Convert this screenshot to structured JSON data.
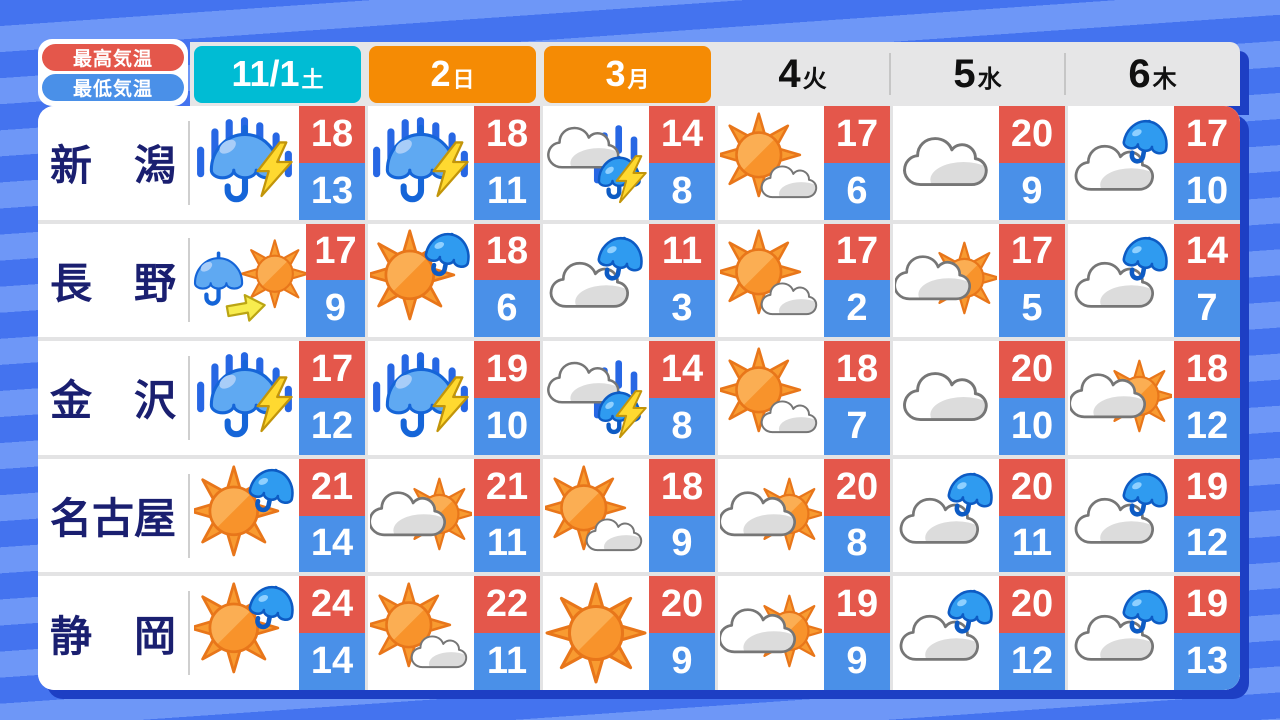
{
  "legend": {
    "high_label": "最高気温",
    "low_label": "最低気温"
  },
  "header": {
    "days": [
      {
        "date": "11/1",
        "weekday": "土",
        "style": "cyan"
      },
      {
        "date": "2",
        "weekday": "日",
        "style": "orange"
      },
      {
        "date": "3",
        "weekday": "月",
        "style": "orange"
      },
      {
        "date": "4",
        "weekday": "火",
        "style": "plain"
      },
      {
        "date": "5",
        "weekday": "水",
        "style": "plain"
      },
      {
        "date": "6",
        "weekday": "木",
        "style": "plain"
      }
    ]
  },
  "cities": [
    {
      "name": "新　潟",
      "cells": [
        {
          "icon": "rain-thunder",
          "high": 18,
          "low": 13
        },
        {
          "icon": "rain-thunder",
          "high": 18,
          "low": 11
        },
        {
          "icon": "cloud-rain-thunder",
          "high": 14,
          "low": 8
        },
        {
          "icon": "sun-cloud",
          "high": 17,
          "low": 6
        },
        {
          "icon": "cloud",
          "high": 20,
          "low": 9
        },
        {
          "icon": "cloud-umbrella",
          "high": 17,
          "low": 10
        }
      ]
    },
    {
      "name": "長　野",
      "cells": [
        {
          "icon": "umbrella-then-sun",
          "high": 17,
          "low": 9
        },
        {
          "icon": "sun-umbrella",
          "high": 18,
          "low": 6
        },
        {
          "icon": "cloud-umbrella",
          "high": 11,
          "low": 3
        },
        {
          "icon": "sun-cloud",
          "high": 17,
          "low": 2
        },
        {
          "icon": "cloud-sun",
          "high": 17,
          "low": 5
        },
        {
          "icon": "cloud-umbrella",
          "high": 14,
          "low": 7
        }
      ]
    },
    {
      "name": "金　沢",
      "cells": [
        {
          "icon": "rain-thunder",
          "high": 17,
          "low": 12
        },
        {
          "icon": "rain-thunder",
          "high": 19,
          "low": 10
        },
        {
          "icon": "cloud-rain-thunder",
          "high": 14,
          "low": 8
        },
        {
          "icon": "sun-cloud",
          "high": 18,
          "low": 7
        },
        {
          "icon": "cloud",
          "high": 20,
          "low": 10
        },
        {
          "icon": "cloud-sun",
          "high": 18,
          "low": 12
        }
      ]
    },
    {
      "name": "名古屋",
      "cells": [
        {
          "icon": "sun-umbrella",
          "high": 21,
          "low": 14
        },
        {
          "icon": "cloud-sun",
          "high": 21,
          "low": 11
        },
        {
          "icon": "sun-cloud",
          "high": 18,
          "low": 9
        },
        {
          "icon": "cloud-sun",
          "high": 20,
          "low": 8
        },
        {
          "icon": "cloud-umbrella",
          "high": 20,
          "low": 11
        },
        {
          "icon": "cloud-umbrella",
          "high": 19,
          "low": 12
        }
      ]
    },
    {
      "name": "静　岡",
      "cells": [
        {
          "icon": "sun-umbrella",
          "high": 24,
          "low": 14
        },
        {
          "icon": "sun-cloud",
          "high": 22,
          "low": 11
        },
        {
          "icon": "sun",
          "high": 20,
          "low": 9
        },
        {
          "icon": "cloud-sun",
          "high": 19,
          "low": 9
        },
        {
          "icon": "cloud-umbrella",
          "high": 20,
          "low": 12
        },
        {
          "icon": "cloud-umbrella",
          "high": 19,
          "low": 13
        }
      ]
    }
  ],
  "colors": {
    "high_box": "#E4574B",
    "low_box": "#4A90E8",
    "saturday_tab": "#00BCD4",
    "sunday_holiday_tab": "#F58B04",
    "background_stripe_dark": "#4473EF",
    "background_stripe_light": "#6E97F7",
    "panel_shadow": "#1D3FC4",
    "city_text": "#1A1F70"
  },
  "chart_data": {
    "type": "table",
    "columns": [
      "11/1土",
      "2日",
      "3月",
      "4火",
      "5水",
      "6木"
    ],
    "rows": [
      {
        "city": "新潟",
        "high": [
          18,
          18,
          14,
          17,
          20,
          17
        ],
        "low": [
          13,
          11,
          8,
          6,
          9,
          10
        ],
        "weather": [
          "rain-thunder",
          "rain-thunder",
          "cloud-rain-thunder",
          "sun-then-cloud",
          "cloudy",
          "cloud-umbrella"
        ]
      },
      {
        "city": "長野",
        "high": [
          17,
          18,
          11,
          17,
          17,
          14
        ],
        "low": [
          9,
          6,
          3,
          2,
          5,
          7
        ],
        "weather": [
          "rain-then-sun",
          "sun-umbrella",
          "cloud-umbrella",
          "sun-then-cloud",
          "cloud-then-sun",
          "cloud-umbrella"
        ]
      },
      {
        "city": "金沢",
        "high": [
          17,
          19,
          14,
          18,
          20,
          18
        ],
        "low": [
          12,
          10,
          8,
          7,
          10,
          12
        ],
        "weather": [
          "rain-thunder",
          "rain-thunder",
          "cloud-rain-thunder",
          "sun-then-cloud",
          "cloudy",
          "cloud-then-sun"
        ]
      },
      {
        "city": "名古屋",
        "high": [
          21,
          21,
          18,
          20,
          20,
          19
        ],
        "low": [
          14,
          11,
          9,
          8,
          11,
          12
        ],
        "weather": [
          "sun-umbrella",
          "cloud-then-sun",
          "sun-then-cloud",
          "cloud-then-sun",
          "cloud-umbrella",
          "cloud-umbrella"
        ]
      },
      {
        "city": "静岡",
        "high": [
          24,
          22,
          20,
          19,
          20,
          19
        ],
        "low": [
          14,
          11,
          9,
          9,
          12,
          13
        ],
        "weather": [
          "sun-umbrella",
          "sun-then-cloud",
          "sunny",
          "cloud-then-sun",
          "cloud-umbrella",
          "cloud-umbrella"
        ]
      }
    ],
    "legend": [
      "最高気温 = red box",
      "最低気温 = blue box"
    ]
  }
}
